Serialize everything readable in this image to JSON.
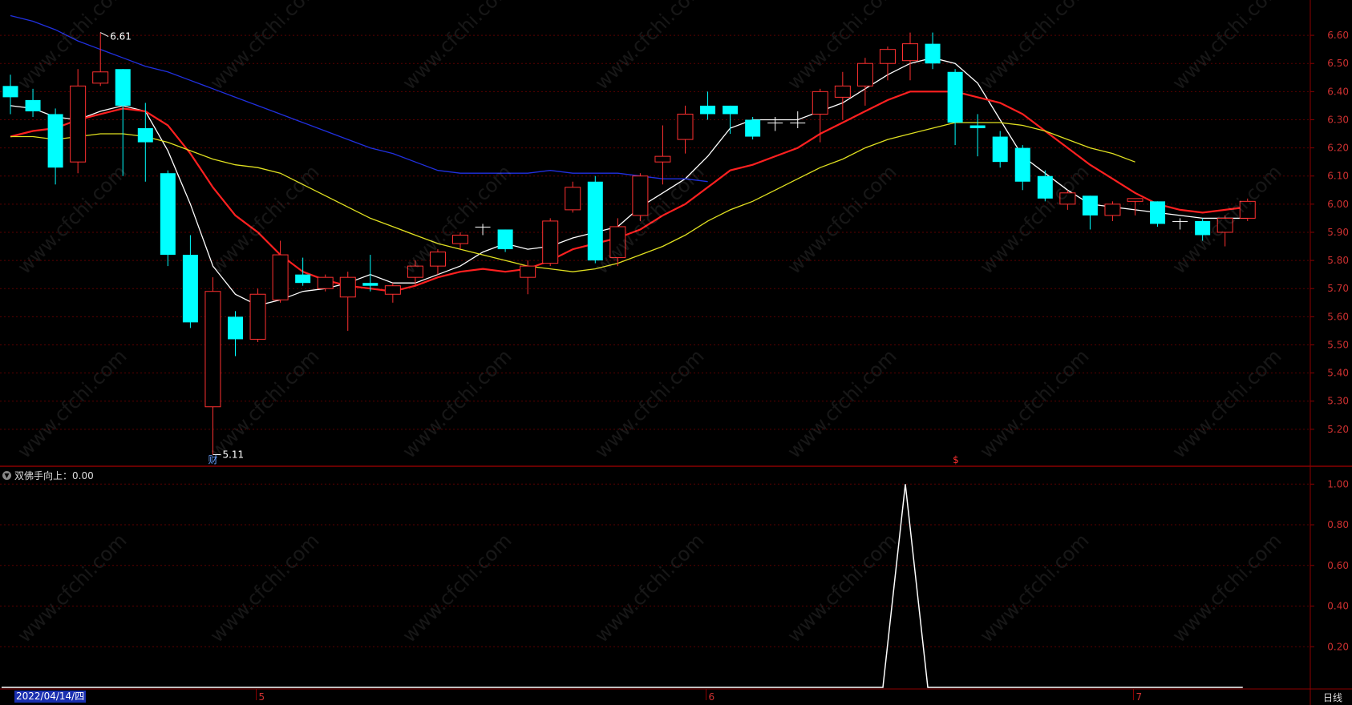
{
  "chart_data": [
    {
      "type": "candlestick",
      "title": "",
      "ylim": [
        5.08,
        6.68
      ],
      "yticks": [
        "6.60",
        "6.50",
        "6.40",
        "6.30",
        "6.20",
        "6.10",
        "6.00",
        "5.90",
        "5.80",
        "5.70",
        "5.60",
        "5.50",
        "5.40",
        "5.30",
        "5.20"
      ],
      "high_marker": "6.61",
      "low_marker": "5.11",
      "event_markers": [
        "财",
        "$"
      ],
      "candles": [
        {
          "o": 6.42,
          "c": 6.38,
          "h": 6.46,
          "l": 6.32
        },
        {
          "o": 6.37,
          "c": 6.33,
          "h": 6.41,
          "l": 6.31
        },
        {
          "o": 6.32,
          "c": 6.13,
          "h": 6.34,
          "l": 6.07
        },
        {
          "o": 6.15,
          "c": 6.42,
          "h": 6.48,
          "l": 6.11
        },
        {
          "o": 6.43,
          "c": 6.47,
          "h": 6.61,
          "l": 6.42
        },
        {
          "o": 6.48,
          "c": 6.35,
          "h": 6.48,
          "l": 6.1
        },
        {
          "o": 6.27,
          "c": 6.22,
          "h": 6.36,
          "l": 6.08
        },
        {
          "o": 6.11,
          "c": 5.82,
          "h": 6.12,
          "l": 5.78
        },
        {
          "o": 5.82,
          "c": 5.58,
          "h": 5.89,
          "l": 5.56
        },
        {
          "o": 5.28,
          "c": 5.69,
          "h": 5.74,
          "l": 5.11
        },
        {
          "o": 5.6,
          "c": 5.52,
          "h": 5.62,
          "l": 5.46
        },
        {
          "o": 5.52,
          "c": 5.68,
          "h": 5.7,
          "l": 5.51
        },
        {
          "o": 5.66,
          "c": 5.82,
          "h": 5.87,
          "l": 5.65
        },
        {
          "o": 5.75,
          "c": 5.72,
          "h": 5.81,
          "l": 5.71
        },
        {
          "o": 5.7,
          "c": 5.74,
          "h": 5.75,
          "l": 5.69
        },
        {
          "o": 5.67,
          "c": 5.74,
          "h": 5.76,
          "l": 5.55
        },
        {
          "o": 5.72,
          "c": 5.71,
          "h": 5.82,
          "l": 5.69
        },
        {
          "o": 5.68,
          "c": 5.71,
          "h": 5.72,
          "l": 5.65
        },
        {
          "o": 5.74,
          "c": 5.78,
          "h": 5.8,
          "l": 5.71
        },
        {
          "o": 5.78,
          "c": 5.83,
          "h": 5.84,
          "l": 5.75
        },
        {
          "o": 5.86,
          "c": 5.89,
          "h": 5.9,
          "l": 5.84
        },
        {
          "o": 5.92,
          "c": 5.92,
          "h": 5.93,
          "l": 5.89
        },
        {
          "o": 5.91,
          "c": 5.84,
          "h": 5.91,
          "l": 5.83
        },
        {
          "o": 5.74,
          "c": 5.78,
          "h": 5.8,
          "l": 5.68
        },
        {
          "o": 5.79,
          "c": 5.94,
          "h": 5.95,
          "l": 5.78
        },
        {
          "o": 5.98,
          "c": 6.06,
          "h": 6.08,
          "l": 5.97
        },
        {
          "o": 6.08,
          "c": 5.8,
          "h": 6.1,
          "l": 5.79
        },
        {
          "o": 5.81,
          "c": 5.92,
          "h": 5.95,
          "l": 5.78
        },
        {
          "o": 5.96,
          "c": 6.1,
          "h": 6.11,
          "l": 5.94
        },
        {
          "o": 6.15,
          "c": 6.17,
          "h": 6.28,
          "l": 6.07
        },
        {
          "o": 6.23,
          "c": 6.32,
          "h": 6.35,
          "l": 6.18
        },
        {
          "o": 6.35,
          "c": 6.32,
          "h": 6.4,
          "l": 6.3
        },
        {
          "o": 6.35,
          "c": 6.32,
          "h": 6.35,
          "l": 6.25
        },
        {
          "o": 6.3,
          "c": 6.24,
          "h": 6.31,
          "l": 6.23
        },
        {
          "o": 6.29,
          "c": 6.29,
          "h": 6.31,
          "l": 6.26
        },
        {
          "o": 6.29,
          "c": 6.29,
          "h": 6.33,
          "l": 6.27
        },
        {
          "o": 6.32,
          "c": 6.4,
          "h": 6.41,
          "l": 6.22
        },
        {
          "o": 6.38,
          "c": 6.42,
          "h": 6.47,
          "l": 6.3
        },
        {
          "o": 6.42,
          "c": 6.5,
          "h": 6.52,
          "l": 6.35
        },
        {
          "o": 6.5,
          "c": 6.55,
          "h": 6.56,
          "l": 6.44
        },
        {
          "o": 6.51,
          "c": 6.57,
          "h": 6.61,
          "l": 6.44
        },
        {
          "o": 6.57,
          "c": 6.5,
          "h": 6.61,
          "l": 6.48
        },
        {
          "o": 6.47,
          "c": 6.29,
          "h": 6.48,
          "l": 6.21
        },
        {
          "o": 6.28,
          "c": 6.27,
          "h": 6.32,
          "l": 6.17
        },
        {
          "o": 6.24,
          "c": 6.15,
          "h": 6.26,
          "l": 6.13
        },
        {
          "o": 6.2,
          "c": 6.08,
          "h": 6.21,
          "l": 6.05
        },
        {
          "o": 6.1,
          "c": 6.02,
          "h": 6.12,
          "l": 6.01
        },
        {
          "o": 6.0,
          "c": 6.04,
          "h": 6.05,
          "l": 5.98
        },
        {
          "o": 6.03,
          "c": 5.96,
          "h": 6.03,
          "l": 5.91
        },
        {
          "o": 5.96,
          "c": 6.0,
          "h": 6.01,
          "l": 5.94
        },
        {
          "o": 6.01,
          "c": 6.02,
          "h": 6.02,
          "l": 5.96
        },
        {
          "o": 6.01,
          "c": 5.93,
          "h": 6.01,
          "l": 5.92
        },
        {
          "o": 5.94,
          "c": 5.94,
          "h": 5.95,
          "l": 5.91
        },
        {
          "o": 5.94,
          "c": 5.89,
          "h": 5.95,
          "l": 5.87
        },
        {
          "o": 5.9,
          "c": 5.95,
          "h": 5.96,
          "l": 5.85
        },
        {
          "o": 5.95,
          "c": 6.01,
          "h": 6.02,
          "l": 5.94
        }
      ],
      "series": [
        {
          "color": "#ffffff",
          "values": [
            6.35,
            6.34,
            6.31,
            6.3,
            6.33,
            6.35,
            6.33,
            6.19,
            6.0,
            5.78,
            5.68,
            5.64,
            5.66,
            5.69,
            5.7,
            5.72,
            5.75,
            5.72,
            5.72,
            5.75,
            5.78,
            5.83,
            5.86,
            5.84,
            5.85,
            5.88,
            5.9,
            5.92,
            5.99,
            6.04,
            6.09,
            6.17,
            6.27,
            6.3,
            6.3,
            6.3,
            6.33,
            6.36,
            6.41,
            6.46,
            6.5,
            6.52,
            6.5,
            6.43,
            6.3,
            6.17,
            6.11,
            6.05,
            6.0,
            5.99,
            5.98,
            5.97,
            5.96,
            5.95,
            5.95,
            5.95
          ]
        },
        {
          "color": "#ff2020",
          "values": [
            6.24,
            6.26,
            6.27,
            6.3,
            6.32,
            6.34,
            6.33,
            6.28,
            6.18,
            6.06,
            5.96,
            5.9,
            5.82,
            5.76,
            5.73,
            5.71,
            5.7,
            5.69,
            5.71,
            5.74,
            5.76,
            5.77,
            5.76,
            5.77,
            5.8,
            5.84,
            5.86,
            5.88,
            5.91,
            5.96,
            6.0,
            6.06,
            6.12,
            6.14,
            6.17,
            6.2,
            6.25,
            6.29,
            6.33,
            6.37,
            6.4,
            6.4,
            6.4,
            6.38,
            6.36,
            6.32,
            6.26,
            6.2,
            6.14,
            6.09,
            6.04,
            6.0,
            5.98,
            5.97,
            5.98,
            5.99
          ]
        },
        {
          "color": "#e0e020",
          "values": [
            6.24,
            6.24,
            6.23,
            6.24,
            6.25,
            6.25,
            6.24,
            6.22,
            6.19,
            6.16,
            6.14,
            6.13,
            6.11,
            6.07,
            6.03,
            5.99,
            5.95,
            5.92,
            5.89,
            5.86,
            5.84,
            5.82,
            5.8,
            5.78,
            5.77,
            5.76,
            5.77,
            5.79,
            5.82,
            5.85,
            5.89,
            5.94,
            5.98,
            6.01,
            6.05,
            6.09,
            6.13,
            6.16,
            6.2,
            6.23,
            6.25,
            6.27,
            6.29,
            6.29,
            6.29,
            6.28,
            6.26,
            6.23,
            6.2,
            6.18,
            6.15
          ]
        },
        {
          "color": "#2030e0",
          "values": [
            6.67,
            6.65,
            6.62,
            6.58,
            6.55,
            6.52,
            6.49,
            6.47,
            6.44,
            6.41,
            6.38,
            6.35,
            6.32,
            6.29,
            6.26,
            6.23,
            6.2,
            6.18,
            6.15,
            6.12,
            6.11,
            6.11,
            6.11,
            6.11,
            6.12,
            6.11,
            6.11,
            6.11,
            6.1,
            6.09,
            6.09,
            6.08
          ]
        }
      ]
    },
    {
      "type": "line",
      "title": "双佛手向上：0.00",
      "ylim": [
        0,
        1.08
      ],
      "yticks": [
        "1.00",
        "0.80",
        "0.60",
        "0.40",
        "0.20"
      ],
      "x_labels": [
        "5",
        "6",
        "7"
      ],
      "series": [
        {
          "color": "#ffffff",
          "values": [
            0,
            0,
            0,
            0,
            0,
            0,
            0,
            0,
            0,
            0,
            0,
            0,
            0,
            0,
            0,
            0,
            0,
            0,
            0,
            0,
            0,
            0,
            0,
            0,
            0,
            0,
            0,
            0,
            0,
            0,
            0,
            0,
            0,
            0,
            0,
            0,
            0,
            0,
            0,
            0,
            1,
            0,
            0,
            0,
            0,
            0,
            0,
            0,
            0,
            0,
            0,
            0,
            0,
            0,
            0,
            0
          ]
        }
      ]
    }
  ],
  "footer": {
    "date": "2022/04/14/四",
    "period": "日线"
  }
}
